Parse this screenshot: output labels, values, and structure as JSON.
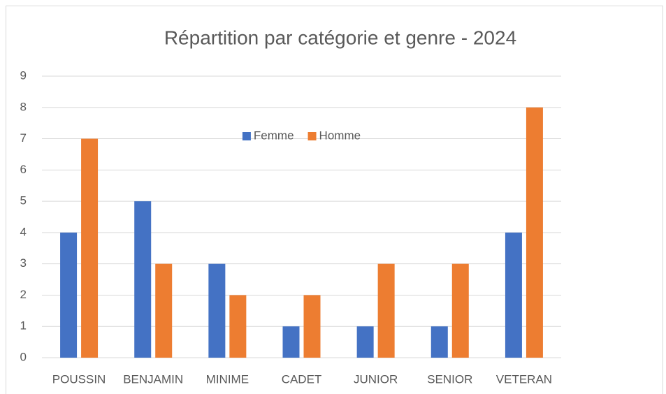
{
  "chart_data": {
    "type": "bar",
    "title": "Répartition par catégorie et genre - 2024",
    "categories": [
      "POUSSIN",
      "BENJAMIN",
      "MINIME",
      "CADET",
      "JUNIOR",
      "SENIOR",
      "VETERAN"
    ],
    "series": [
      {
        "name": "Femme",
        "color": "#4472c4",
        "values": [
          4,
          5,
          3,
          1,
          1,
          1,
          4
        ]
      },
      {
        "name": "Homme",
        "color": "#ed7d31",
        "values": [
          7,
          3,
          2,
          2,
          3,
          3,
          8
        ]
      }
    ],
    "ylim": [
      0,
      9
    ],
    "yticks": [
      0,
      1,
      2,
      3,
      4,
      5,
      6,
      7,
      8,
      9
    ],
    "grid": true,
    "legend": "top"
  }
}
